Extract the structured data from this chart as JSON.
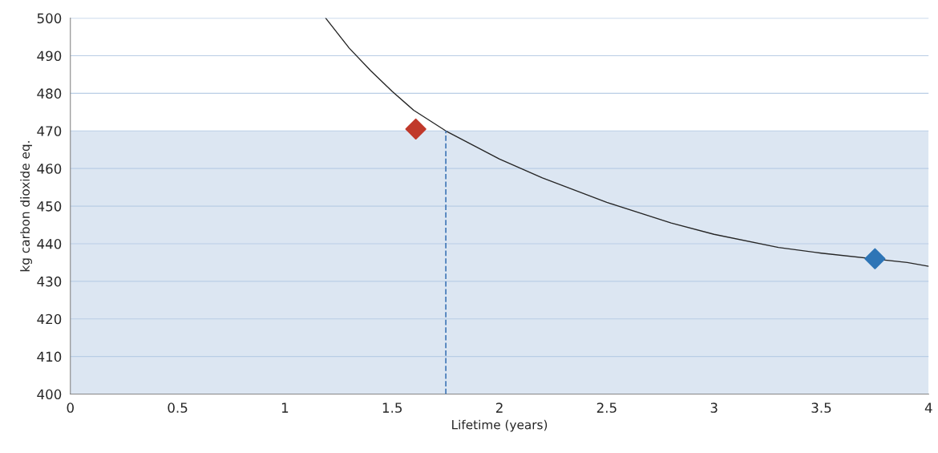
{
  "chart_data": {
    "type": "line",
    "xlabel": "Lifetime (years)",
    "ylabel": "kg carbon dioxide eq.",
    "xlim": [
      0,
      4
    ],
    "xticks": [
      0,
      0.5,
      1,
      1.5,
      2,
      2.5,
      3,
      3.5,
      4
    ],
    "ylim": [
      400,
      500
    ],
    "yticks": [
      400,
      410,
      420,
      430,
      440,
      450,
      460,
      470,
      480,
      490,
      500
    ],
    "grid": "y",
    "bands": [
      {
        "axis": "y",
        "from": 400,
        "to": 470,
        "color": "#dce6f2"
      }
    ],
    "series": [
      {
        "color": "#262626",
        "marker": "none",
        "line_style": "solid",
        "x": [
          1.19,
          1.3,
          1.4,
          1.5,
          1.6,
          1.75,
          1.9,
          2.0,
          2.2,
          2.5,
          2.8,
          3.0,
          3.3,
          3.5,
          3.9,
          4.0
        ],
        "values": [
          500,
          492,
          486,
          480.5,
          475.5,
          470,
          465.5,
          462.5,
          457.5,
          451,
          445.5,
          442.5,
          439,
          437.5,
          435,
          434
        ]
      },
      {
        "color": "#4a7ebb",
        "marker": "none",
        "line_style": "dashed",
        "x": [
          1.75,
          1.75
        ],
        "values": [
          400,
          470
        ]
      },
      {
        "type": "scatter",
        "color": "#c0392b",
        "marker": "diamond",
        "x": [
          1.61
        ],
        "values": [
          470.5
        ]
      },
      {
        "type": "scatter",
        "color": "#2e75b6",
        "marker": "diamond",
        "x": [
          3.75
        ],
        "values": [
          436
        ]
      }
    ]
  }
}
